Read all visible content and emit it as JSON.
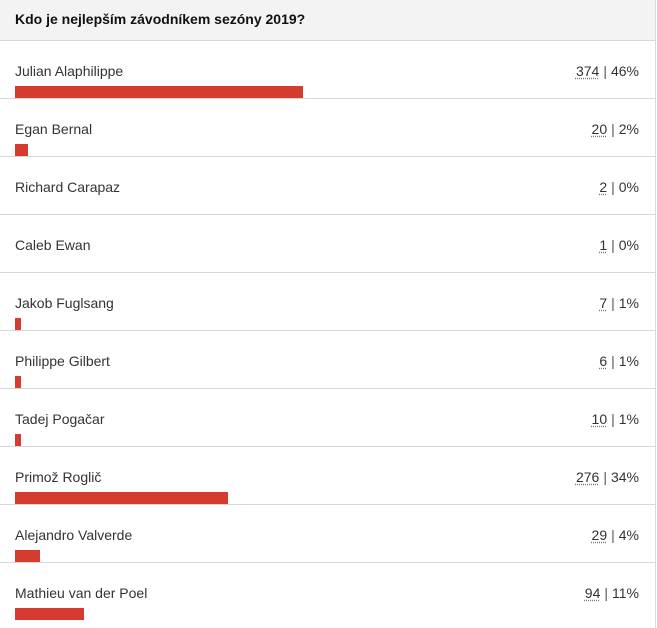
{
  "poll": {
    "question": "Kdo je nejlepším závodníkem sezóny 2019?",
    "bar_color": "#d63b30",
    "options": [
      {
        "name": "Julian Alaphilippe",
        "votes": "374",
        "percent": "46%",
        "bar_fraction": 0.46
      },
      {
        "name": "Egan Bernal",
        "votes": "20",
        "percent": "2%",
        "bar_fraction": 0.02
      },
      {
        "name": "Richard Carapaz",
        "votes": "2",
        "percent": "0%",
        "bar_fraction": 0.0
      },
      {
        "name": "Caleb Ewan",
        "votes": "1",
        "percent": "0%",
        "bar_fraction": 0.0
      },
      {
        "name": "Jakob Fuglsang",
        "votes": "7",
        "percent": "1%",
        "bar_fraction": 0.01
      },
      {
        "name": "Philippe Gilbert",
        "votes": "6",
        "percent": "1%",
        "bar_fraction": 0.01
      },
      {
        "name": "Tadej Pogačar",
        "votes": "10",
        "percent": "1%",
        "bar_fraction": 0.01
      },
      {
        "name": "Primož Roglič",
        "votes": "276",
        "percent": "34%",
        "bar_fraction": 0.34
      },
      {
        "name": "Alejandro Valverde",
        "votes": "29",
        "percent": "4%",
        "bar_fraction": 0.04
      },
      {
        "name": "Mathieu van der Poel",
        "votes": "94",
        "percent": "11%",
        "bar_fraction": 0.11
      }
    ]
  }
}
